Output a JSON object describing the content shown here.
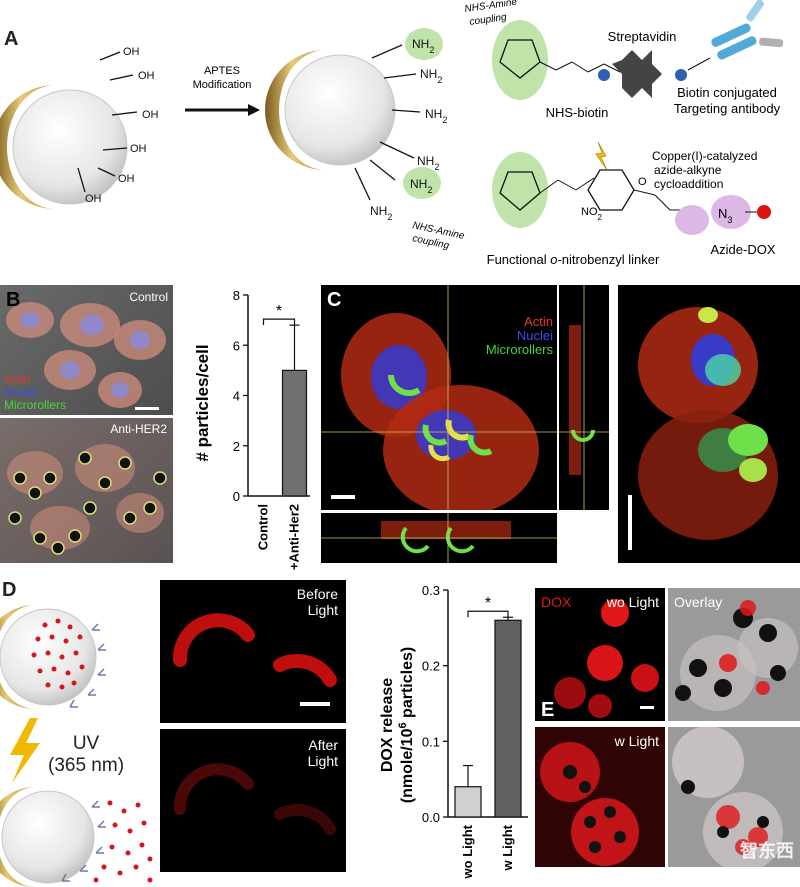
{
  "panelA": {
    "letter": "A",
    "oh_labels": [
      "OH",
      "OH",
      "OH",
      "OH",
      "OH",
      "OH",
      "OH"
    ],
    "arrow_label_1": "APTES",
    "arrow_label_2": "Modification",
    "nh2_base": "NH",
    "nh2_sub": "2",
    "nh2_count": 7,
    "nhs_amine_top_1": "NHS-Amine",
    "nhs_amine_top_2": "coupling",
    "nhs_amine_bottom_1": "NHS-Amine",
    "nhs_amine_bottom_2": "coupling",
    "streptavidin": "Streptavidin",
    "nhs_biotin": "NHS-biotin",
    "biotin_conj_1": "Biotin conjugated",
    "biotin_conj_2": "Targeting antibody",
    "copper_1": "Copper(I)-catalyzed",
    "copper_2": "azide-alkyne",
    "copper_3": "cycloaddition",
    "linker_prefix": "Functional ",
    "linker_italic": "o",
    "linker_suffix": "-nitrobenzyl linker",
    "azide_dox": "Azide-DOX",
    "no2": "NO",
    "no2_sub": "2",
    "n3": "N",
    "n3_sub": "3",
    "o_atom": "O"
  },
  "panelB": {
    "letter": "B",
    "control_label": "Control",
    "antiher2_label": "Anti-HER2",
    "legend": [
      {
        "label": "Actin",
        "color": "#e83a2a"
      },
      {
        "label": "Nuclei",
        "color": "#3a4ee8"
      },
      {
        "label": "Microrollers",
        "color": "#4bd43a"
      }
    ]
  },
  "chartB": {
    "chart_data": {
      "type": "bar",
      "categories": [
        "Control",
        "+Anti-Her2"
      ],
      "values": [
        0,
        5.0
      ],
      "errors": [
        0,
        1.8
      ],
      "ylabel": "# particles/cell",
      "ylim": [
        0,
        8
      ],
      "yticks": [
        "0",
        "2",
        "4",
        "6",
        "8"
      ],
      "significance": "*",
      "bar_colors": [
        "#ffffff",
        "#707070"
      ]
    }
  },
  "panelC": {
    "letter": "C",
    "legend": [
      {
        "label": "Actin",
        "color": "#e83a2a"
      },
      {
        "label": "Nuclei",
        "color": "#3a4ee8"
      },
      {
        "label": "Microrollers",
        "color": "#4bd43a"
      }
    ]
  },
  "panelD": {
    "letter": "D",
    "uv_1": "UV",
    "uv_2": "(365 nm)",
    "before_1": "Before",
    "before_2": "Light",
    "after_1": "After",
    "after_2": "Light"
  },
  "chartD": {
    "chart_data": {
      "type": "bar",
      "categories": [
        "wo Light",
        "w Light"
      ],
      "values": [
        0.04,
        0.26
      ],
      "errors": [
        0.028,
        0.004
      ],
      "ylabel_1": "DOX release",
      "ylabel_2": "(nmole/10",
      "ylabel_sup": "6",
      "ylabel_3": " particles)",
      "ylim": [
        0,
        0.3
      ],
      "yticks": [
        "0.0",
        "0.1",
        "0.2",
        "0.3"
      ],
      "significance": "*",
      "bar_colors": [
        "#d0d0d0",
        "#606060"
      ]
    }
  },
  "panelE": {
    "letter": "E",
    "dox": "DOX",
    "wo_light": "wo Light",
    "overlay": "Overlay",
    "w_light": "w Light"
  },
  "watermark": "智东西"
}
